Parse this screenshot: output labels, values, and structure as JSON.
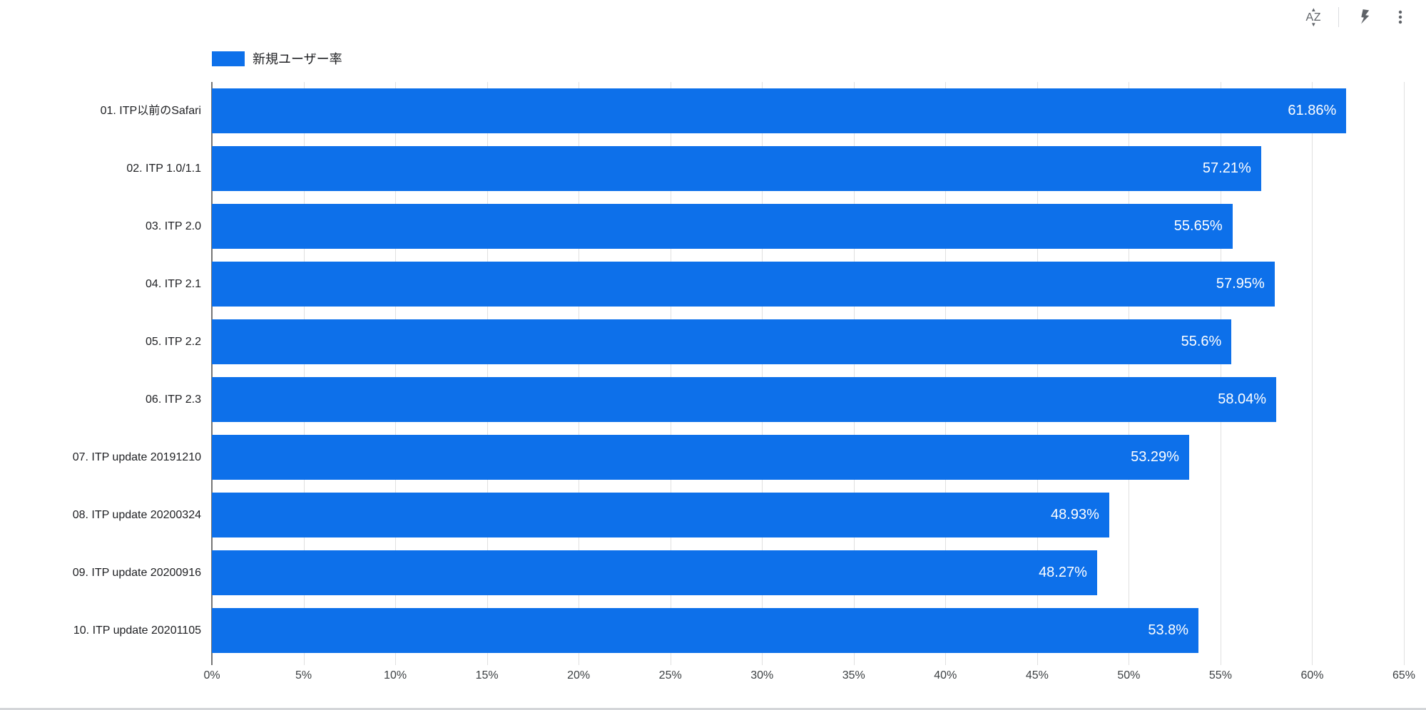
{
  "toolbar": {
    "icons": [
      {
        "name": "sort-az-icon"
      },
      {
        "name": "lightning-icon"
      },
      {
        "name": "kebab-menu-icon"
      }
    ]
  },
  "legend": {
    "label": "新規ユーザー率",
    "swatch_color": "#0d70ea"
  },
  "chart_data": {
    "type": "bar",
    "orientation": "horizontal",
    "title": "",
    "legend_entries": [
      "新規ユーザー率"
    ],
    "legend_position": "top-left",
    "grid": true,
    "categories": [
      "01. ITP以前のSafari",
      "02. ITP 1.0/1.1",
      "03. ITP 2.0",
      "04. ITP 2.1",
      "05. ITP 2.2",
      "06. ITP 2.3",
      "07. ITP update 20191210",
      "08. ITP update 20200324",
      "09. ITP update 20200916",
      "10. ITP update 20201105"
    ],
    "values": [
      61.86,
      57.21,
      55.65,
      57.95,
      55.6,
      58.04,
      53.29,
      48.93,
      48.27,
      53.8
    ],
    "value_labels": [
      "61.86%",
      "57.21%",
      "55.65%",
      "57.95%",
      "55.6%",
      "58.04%",
      "53.29%",
      "48.93%",
      "48.27%",
      "53.8%"
    ],
    "xlabel": "",
    "ylabel": "",
    "x_axis": {
      "min": 0,
      "max": 65,
      "tick_step": 5,
      "tick_labels": [
        "0%",
        "5%",
        "10%",
        "15%",
        "20%",
        "25%",
        "30%",
        "35%",
        "40%",
        "45%",
        "50%",
        "55%",
        "60%",
        "65%"
      ]
    },
    "colors": {
      "bar": "#0d70ea",
      "gridline": "#e0e0e0",
      "axis_line": "#757575",
      "bar_label_text": "#ffffff",
      "category_text": "#202124",
      "tick_text": "#3c4043",
      "icon": "#5f6368"
    }
  }
}
